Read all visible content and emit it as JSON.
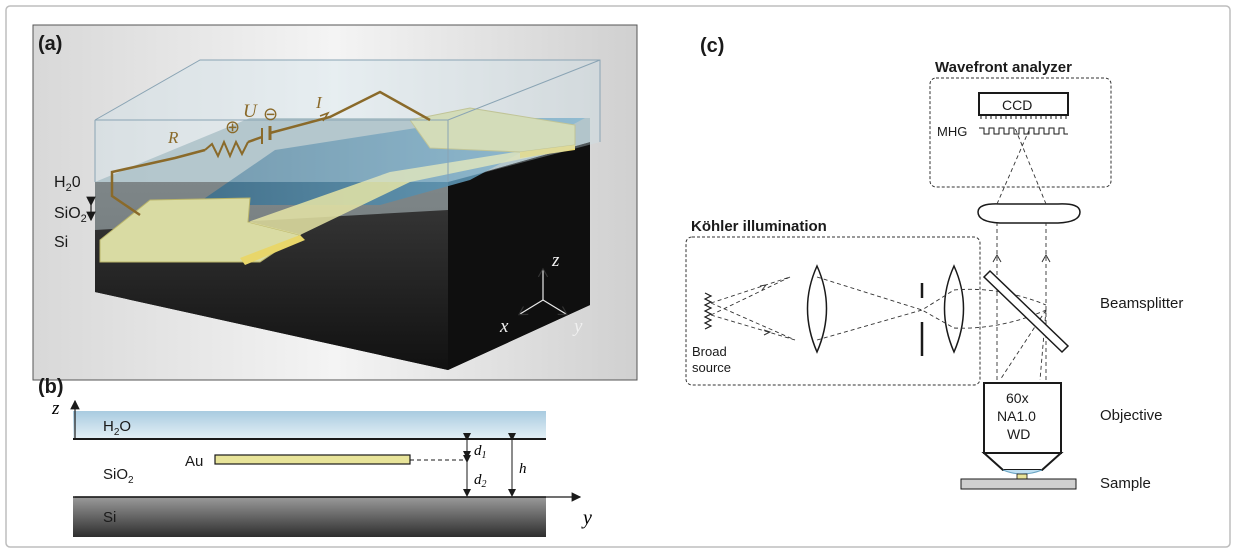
{
  "panel_a": {
    "label": "(a)",
    "layers": {
      "water": "H",
      "water_sub": "2",
      "water_tail": "0",
      "oxide": "SiO",
      "oxide_sub": "2",
      "silicon": "Si"
    },
    "circuit": {
      "resistor": "R",
      "voltage": "U",
      "current": "I",
      "plus": "⊕",
      "minus": "⊖"
    },
    "axes": {
      "x": "x",
      "y": "y",
      "z": "z"
    }
  },
  "panel_b": {
    "label": "(b)",
    "layers": {
      "water": "H",
      "water_sub": "2",
      "water_tail": "O",
      "oxide": "SiO",
      "oxide_sub": "2",
      "silicon": "Si",
      "gold": "Au"
    },
    "dims": {
      "d1": "d",
      "d1_sub": "1",
      "d2": "d",
      "d2_sub": "2",
      "h": "h"
    },
    "axes": {
      "y": "y",
      "z": "z"
    }
  },
  "panel_c": {
    "label": "(c)",
    "wavefront_title": "Wavefront analyzer",
    "ccd": "CCD",
    "mhg": "MHG",
    "kohler_title": "Köhler illumination",
    "source_line1": "Broad",
    "source_line2": "source",
    "beamsplitter": "Beamsplitter",
    "objective_line1": "60x",
    "objective_line2": "NA1.0",
    "objective_line3": "WD",
    "objective_label": "Objective",
    "sample": "Sample"
  },
  "colors": {
    "frame": "#bdbdbd",
    "gold": "#e8e49a",
    "wire": "#8a6a2a",
    "water": "#cfe1ec",
    "silicon": "#2a2a2a",
    "channel": "#3f7fa0"
  }
}
